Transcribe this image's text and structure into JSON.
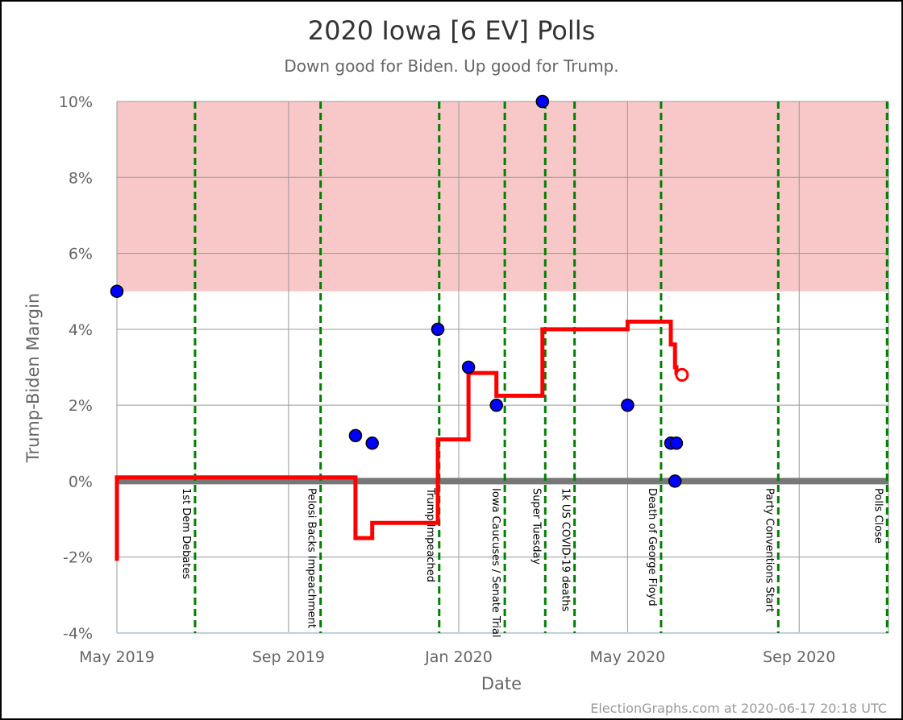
{
  "chart_data": {
    "type": "scatter",
    "title": "2020 Iowa [6 EV] Polls",
    "subtitle": "Down good for Biden. Up good for Trump.",
    "xlabel": "Date",
    "ylabel": "Trump-Biden Margin",
    "credit": "ElectionGraphs.com at 2020-06-17 20:18 UTC",
    "xlim": [
      "2019-05-01",
      "2020-11-04"
    ],
    "ylim": [
      -4,
      10
    ],
    "y_ticks": [
      {
        "value": 10,
        "label": "10%"
      },
      {
        "value": 8,
        "label": "8%"
      },
      {
        "value": 6,
        "label": "6%"
      },
      {
        "value": 4,
        "label": "4%"
      },
      {
        "value": 2,
        "label": "2%"
      },
      {
        "value": 0,
        "label": "0%"
      },
      {
        "value": -2,
        "label": "-2%"
      },
      {
        "value": -4,
        "label": "-4%"
      }
    ],
    "x_ticks": [
      {
        "date": "2019-05-01",
        "label": "May 2019"
      },
      {
        "date": "2019-09-01",
        "label": "Sep 2019"
      },
      {
        "date": "2020-01-01",
        "label": "Jan 2020"
      },
      {
        "date": "2020-05-01",
        "label": "May 2020"
      },
      {
        "date": "2020-09-01",
        "label": "Sep 2020"
      }
    ],
    "shaded_region": {
      "from": 5,
      "to": 10,
      "color": "#f8c8c8"
    },
    "zero_line_color": "#777777",
    "grid": true,
    "colors": {
      "poll": "#0000ff",
      "average": "#ff0000",
      "event": "#008000",
      "grid": "#999999"
    },
    "events": [
      {
        "date": "2019-06-26",
        "label": "1st Dem Debates"
      },
      {
        "date": "2019-09-24",
        "label": "Pelosi Backs Impeachment"
      },
      {
        "date": "2019-12-18",
        "label": "Trump Impeached"
      },
      {
        "date": "2020-02-03",
        "label": "Iowa Caucuses / Senate Trial"
      },
      {
        "date": "2020-03-03",
        "label": "Super Tuesday"
      },
      {
        "date": "2020-03-24",
        "label": "1k US COVID-19 deaths"
      },
      {
        "date": "2020-05-25",
        "label": "Death of George Floyd"
      },
      {
        "date": "2020-08-17",
        "label": "Party Conventions Start"
      },
      {
        "date": "2020-11-03",
        "label": "Polls Close"
      }
    ],
    "polls": [
      {
        "date": "2019-05-01",
        "margin": 5
      },
      {
        "date": "2019-10-19",
        "margin": 1.2
      },
      {
        "date": "2019-10-31",
        "margin": 1
      },
      {
        "date": "2019-12-17",
        "margin": 4
      },
      {
        "date": "2020-01-08",
        "margin": 3
      },
      {
        "date": "2020-01-28",
        "margin": 2
      },
      {
        "date": "2020-03-01",
        "margin": 10
      },
      {
        "date": "2020-05-01",
        "margin": 2
      },
      {
        "date": "2020-06-01",
        "margin": 1
      },
      {
        "date": "2020-06-05",
        "margin": 1
      },
      {
        "date": "2020-06-04",
        "margin": 0
      }
    ],
    "average": [
      {
        "date": "2019-05-01",
        "margin": -2.1
      },
      {
        "date": "2019-05-01",
        "margin": 0.1
      },
      {
        "date": "2019-10-19",
        "margin": 0.1
      },
      {
        "date": "2019-10-19",
        "margin": -1.5
      },
      {
        "date": "2019-10-31",
        "margin": -1.5
      },
      {
        "date": "2019-10-31",
        "margin": -1.1
      },
      {
        "date": "2019-12-17",
        "margin": -1.1
      },
      {
        "date": "2019-12-17",
        "margin": 1.1
      },
      {
        "date": "2020-01-08",
        "margin": 1.1
      },
      {
        "date": "2020-01-08",
        "margin": 2.85
      },
      {
        "date": "2020-01-28",
        "margin": 2.85
      },
      {
        "date": "2020-01-28",
        "margin": 2.25
      },
      {
        "date": "2020-03-01",
        "margin": 2.25
      },
      {
        "date": "2020-03-01",
        "margin": 4
      },
      {
        "date": "2020-05-01",
        "margin": 4
      },
      {
        "date": "2020-05-01",
        "margin": 4.2
      },
      {
        "date": "2020-06-01",
        "margin": 4.2
      },
      {
        "date": "2020-06-01",
        "margin": 3.6
      },
      {
        "date": "2020-06-04",
        "margin": 3.6
      },
      {
        "date": "2020-06-04",
        "margin": 3.0
      },
      {
        "date": "2020-06-05",
        "margin": 3.0
      },
      {
        "date": "2020-06-05",
        "margin": 2.85
      },
      {
        "date": "2020-06-09",
        "margin": 2.85
      }
    ],
    "current_average": {
      "date": "2020-06-09",
      "margin": 2.8
    }
  }
}
